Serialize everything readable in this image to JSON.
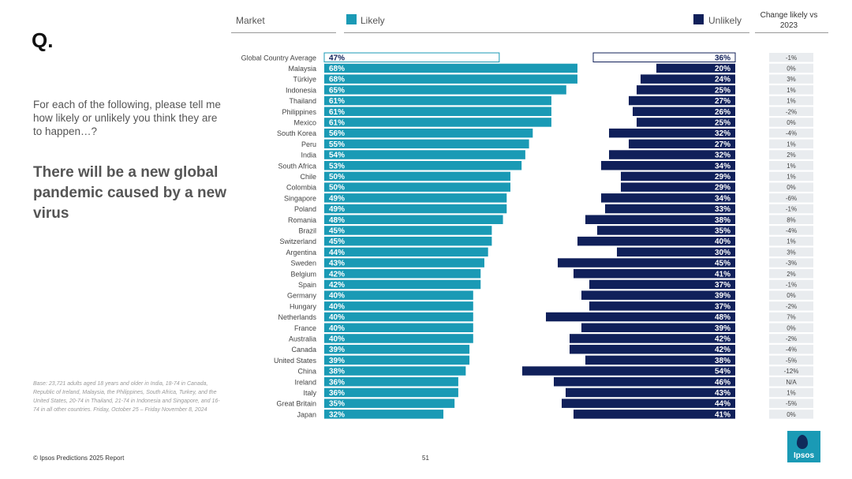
{
  "page": {
    "q_mark": "Q.",
    "question": "For each of the following, please tell me how likely or unlikely you think they are to happen…?",
    "statement": "There will be a new global pandemic caused by a new virus",
    "base_note": "Base: 23,721 adults aged 18 years and older in India, 18-74 in Canada, Republic of Ireland, Malaysia, the Philippines, South Africa, Turkey, and the United States, 20-74 in Thailand, 21-74 in Indonesia and Singapore, and 16-74 in all other countries. Friday, October 25 – Friday November 8, 2024",
    "footer": "© Ipsos Predictions 2025 Report",
    "page_number": "51",
    "logo_text": "Ipsos"
  },
  "headers": {
    "market": "Market",
    "likely": "Likely",
    "unlikely": "Unlikely",
    "change": "Change likely vs 2023"
  },
  "colors": {
    "likely": "#1a9ab5",
    "unlikely": "#10205a",
    "change_bg": "#e9ecef"
  },
  "chart_data": {
    "type": "bar",
    "categories": [
      "Global Country Average",
      "Malaysia",
      "Türkiye",
      "Indonesia",
      "Thailand",
      "Philippines",
      "Mexico",
      "South Korea",
      "Peru",
      "India",
      "South Africa",
      "Chile",
      "Colombia",
      "Singapore",
      "Poland",
      "Romania",
      "Brazil",
      "Switzerland",
      "Argentina",
      "Sweden",
      "Belgium",
      "Spain",
      "Germany",
      "Hungary",
      "Netherlands",
      "France",
      "Australia",
      "Canada",
      "United States",
      "China",
      "Ireland",
      "Italy",
      "Great Britain",
      "Japan"
    ],
    "series": [
      {
        "name": "Likely",
        "values": [
          47,
          68,
          68,
          65,
          61,
          61,
          61,
          56,
          55,
          54,
          53,
          50,
          50,
          49,
          49,
          48,
          45,
          45,
          44,
          43,
          42,
          42,
          40,
          40,
          40,
          40,
          40,
          39,
          39,
          38,
          36,
          36,
          35,
          32
        ]
      },
      {
        "name": "Unlikely",
        "values": [
          36,
          20,
          24,
          25,
          27,
          26,
          25,
          32,
          27,
          32,
          34,
          29,
          29,
          34,
          33,
          38,
          35,
          40,
          30,
          45,
          41,
          37,
          39,
          37,
          48,
          39,
          42,
          42,
          38,
          54,
          46,
          43,
          44,
          41
        ]
      }
    ],
    "change_vs_2023": [
      "-1%",
      "0%",
      "3%",
      "1%",
      "1%",
      "-2%",
      "0%",
      "-4%",
      "1%",
      "2%",
      "1%",
      "1%",
      "0%",
      "-6%",
      "-1%",
      "8%",
      "-4%",
      "1%",
      "3%",
      "-3%",
      "2%",
      "-1%",
      "0%",
      "-2%",
      "7%",
      "0%",
      "-2%",
      "-4%",
      "-5%",
      "-12%",
      "N/A",
      "1%",
      "-5%",
      "0%"
    ],
    "value_suffix": "%"
  }
}
